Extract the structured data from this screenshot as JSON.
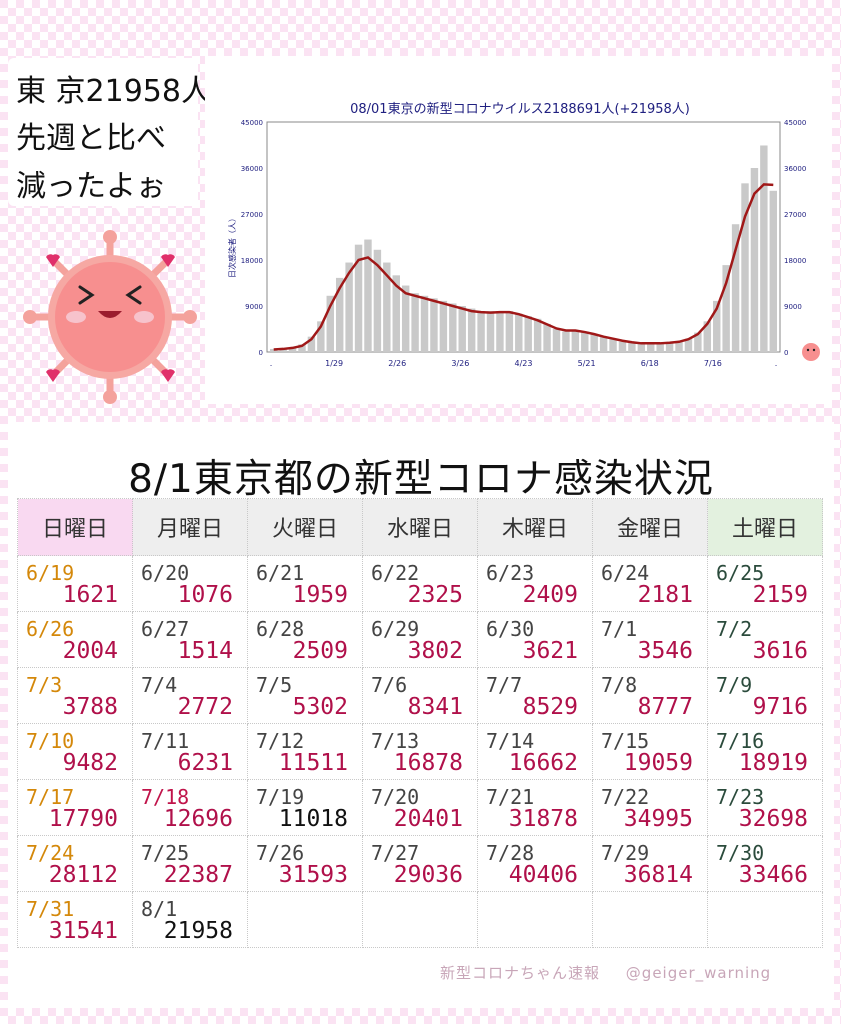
{
  "speech": {
    "line1": "東 京21958人",
    "line2": "先週と比べ",
    "line3": "減ったよぉ"
  },
  "colors": {
    "bar": "#c9c9c9",
    "average_line": "#a01818",
    "value_text": "#b0104a",
    "sunday_text": "#d4880a",
    "saturday_text": "#2b4b3c",
    "sunday_header_bg": "#f9d9f1",
    "saturday_header_bg": "#e3f1df"
  },
  "chart_data": {
    "type": "bar",
    "title": "08/01東京の新型コロナウイルス2188691人(+21958人)",
    "ylabel": "日次感染者（人）",
    "ylim": [
      0,
      45000
    ],
    "yticks": [
      "0",
      "9000",
      "18000",
      "27000",
      "36000",
      "45000"
    ],
    "xticks": [
      ".",
      "1/29",
      "2/26",
      "3/26",
      "4/23",
      "5/21",
      "6/18",
      "7/16",
      "."
    ],
    "daily_weekly": [
      {
        "name": "daily",
        "values": [
          600,
          700,
          900,
          1500,
          3000,
          6000,
          11000,
          14500,
          17500,
          21000,
          22000,
          20000,
          17500,
          15000,
          13000,
          11500,
          11000,
          10500,
          10000,
          9500,
          9000,
          8500,
          8000,
          8000,
          8000,
          8000,
          7500,
          7000,
          6500,
          5500,
          4500,
          4000,
          4200,
          4000,
          3500,
          3000,
          2500,
          2000,
          1800,
          1600,
          1600,
          1600,
          1700,
          2000,
          2600,
          3800,
          6000,
          10000,
          17000,
          25000,
          33000,
          36000,
          40406,
          31541
        ]
      },
      {
        "name": "7-day average",
        "values": [
          500,
          600,
          800,
          1200,
          2500,
          5000,
          9000,
          12500,
          15500,
          18000,
          18500,
          17000,
          15000,
          13000,
          11500,
          11000,
          10500,
          10000,
          9500,
          9000,
          8500,
          8000,
          7800,
          7700,
          7800,
          7800,
          7400,
          6800,
          6200,
          5400,
          4600,
          4200,
          4200,
          3900,
          3500,
          3000,
          2600,
          2200,
          1900,
          1700,
          1700,
          1700,
          1800,
          2000,
          2500,
          3500,
          5500,
          8500,
          13500,
          20000,
          26500,
          31000,
          32800,
          32700
        ]
      }
    ]
  },
  "table": {
    "title": "8/1東京都の新型コロナ感染状況",
    "headers": [
      "日曜日",
      "月曜日",
      "火曜日",
      "水曜日",
      "木曜日",
      "金曜日",
      "土曜日"
    ],
    "rows": [
      [
        {
          "date": "6/19",
          "value": "1621"
        },
        {
          "date": "6/20",
          "value": "1076"
        },
        {
          "date": "6/21",
          "value": "1959"
        },
        {
          "date": "6/22",
          "value": "2325"
        },
        {
          "date": "6/23",
          "value": "2409"
        },
        {
          "date": "6/24",
          "value": "2181"
        },
        {
          "date": "6/25",
          "value": "2159"
        }
      ],
      [
        {
          "date": "6/26",
          "value": "2004"
        },
        {
          "date": "6/27",
          "value": "1514"
        },
        {
          "date": "6/28",
          "value": "2509"
        },
        {
          "date": "6/29",
          "value": "3802"
        },
        {
          "date": "6/30",
          "value": "3621"
        },
        {
          "date": "7/1",
          "value": "3546"
        },
        {
          "date": "7/2",
          "value": "3616"
        }
      ],
      [
        {
          "date": "7/3",
          "value": "3788"
        },
        {
          "date": "7/4",
          "value": "2772"
        },
        {
          "date": "7/5",
          "value": "5302"
        },
        {
          "date": "7/6",
          "value": "8341"
        },
        {
          "date": "7/7",
          "value": "8529"
        },
        {
          "date": "7/8",
          "value": "8777"
        },
        {
          "date": "7/9",
          "value": "9716"
        }
      ],
      [
        {
          "date": "7/10",
          "value": "9482"
        },
        {
          "date": "7/11",
          "value": "6231"
        },
        {
          "date": "7/12",
          "value": "11511"
        },
        {
          "date": "7/13",
          "value": "16878"
        },
        {
          "date": "7/14",
          "value": "16662"
        },
        {
          "date": "7/15",
          "value": "19059"
        },
        {
          "date": "7/16",
          "value": "18919"
        }
      ],
      [
        {
          "date": "7/17",
          "value": "17790"
        },
        {
          "date": "7/18",
          "value": "12696"
        },
        {
          "date": "7/19",
          "value": "11018"
        },
        {
          "date": "7/20",
          "value": "20401"
        },
        {
          "date": "7/21",
          "value": "31878"
        },
        {
          "date": "7/22",
          "value": "34995"
        },
        {
          "date": "7/23",
          "value": "32698"
        }
      ],
      [
        {
          "date": "7/24",
          "value": "28112"
        },
        {
          "date": "7/25",
          "value": "22387"
        },
        {
          "date": "7/26",
          "value": "31593"
        },
        {
          "date": "7/27",
          "value": "29036"
        },
        {
          "date": "7/28",
          "value": "40406"
        },
        {
          "date": "7/29",
          "value": "36814"
        },
        {
          "date": "7/30",
          "value": "33466"
        }
      ],
      [
        {
          "date": "7/31",
          "value": "31541"
        },
        {
          "date": "8/1",
          "value": "21958"
        },
        {
          "date": "",
          "value": ""
        },
        {
          "date": "",
          "value": ""
        },
        {
          "date": "",
          "value": ""
        },
        {
          "date": "",
          "value": ""
        },
        {
          "date": "",
          "value": ""
        }
      ]
    ]
  },
  "footer": {
    "source": "新型コロナちゃん速報",
    "handle": "@geiger_warning"
  }
}
